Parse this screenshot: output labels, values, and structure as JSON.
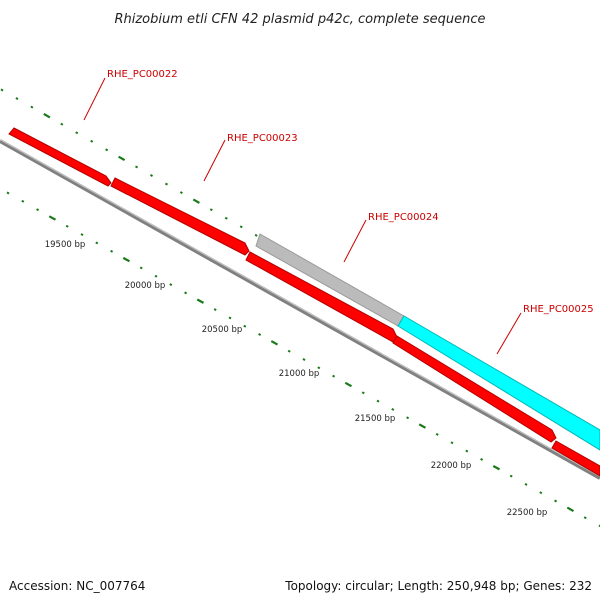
{
  "title": "Rhizobium etli CFN 42 plasmid p42c, complete sequence",
  "genes": [
    {
      "name": "RHE_PC00022",
      "color": "#ff0000"
    },
    {
      "name": "RHE_PC00023",
      "color": "#ff0000"
    },
    {
      "name": "RHE_PC00024",
      "color": "#bbbbbb"
    },
    {
      "name": "RHE_PC00025",
      "color": "#00ffff"
    }
  ],
  "bp_ticks": [
    "19500 bp",
    "20000 bp",
    "20500 bp",
    "21000 bp",
    "21500 bp",
    "22000 bp",
    "22500 bp"
  ],
  "colors": {
    "gene_red": "#ff0000",
    "gene_gray": "#bbbbbb",
    "gene_cyan": "#00ffff",
    "backbone": "#808080",
    "tick_green": "#1a7a1a",
    "label_red": "#cc0000"
  },
  "footer": {
    "accession": "Accession: NC_007764",
    "summary": "Topology: circular; Length: 250,948 bp; Genes: 232"
  }
}
